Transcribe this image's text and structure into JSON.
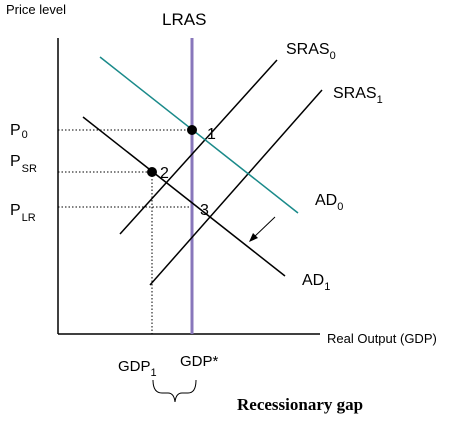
{
  "chart_data": {
    "type": "line",
    "ylabel": "Price level",
    "xlabel": "Real Output (GDP)",
    "curves": [
      {
        "name": "LRAS",
        "kind": "vertical",
        "color": "#8877bb"
      },
      {
        "name": "SRAS",
        "sub": "0",
        "kind": "upward",
        "color": "#000000"
      },
      {
        "name": "SRAS",
        "sub": "1",
        "kind": "upward",
        "color": "#000000"
      },
      {
        "name": "AD",
        "sub": "0",
        "kind": "downward",
        "color": "#1a8a8a"
      },
      {
        "name": "AD",
        "sub": "1",
        "kind": "downward",
        "color": "#000000"
      }
    ],
    "points": [
      {
        "label": "1",
        "on": [
          "SRAS0",
          "AD0",
          "LRAS"
        ]
      },
      {
        "label": "2",
        "on": [
          "SRAS0",
          "AD1"
        ]
      },
      {
        "label": "3",
        "on": [
          "SRAS1",
          "AD1",
          "LRAS"
        ]
      }
    ],
    "y_ticks": [
      {
        "main": "P",
        "sub": "0"
      },
      {
        "main": "P",
        "sub": "SR"
      },
      {
        "main": "P",
        "sub": "LR"
      }
    ],
    "x_ticks": [
      {
        "main": "GDP",
        "sub": "1"
      },
      {
        "main": "GDP*",
        "sub": ""
      }
    ],
    "annotations": [
      {
        "text": "Recessionary gap",
        "kind": "brace-label"
      },
      {
        "kind": "arrow",
        "meaning": "AD shifts left from AD0 to AD1"
      }
    ]
  }
}
